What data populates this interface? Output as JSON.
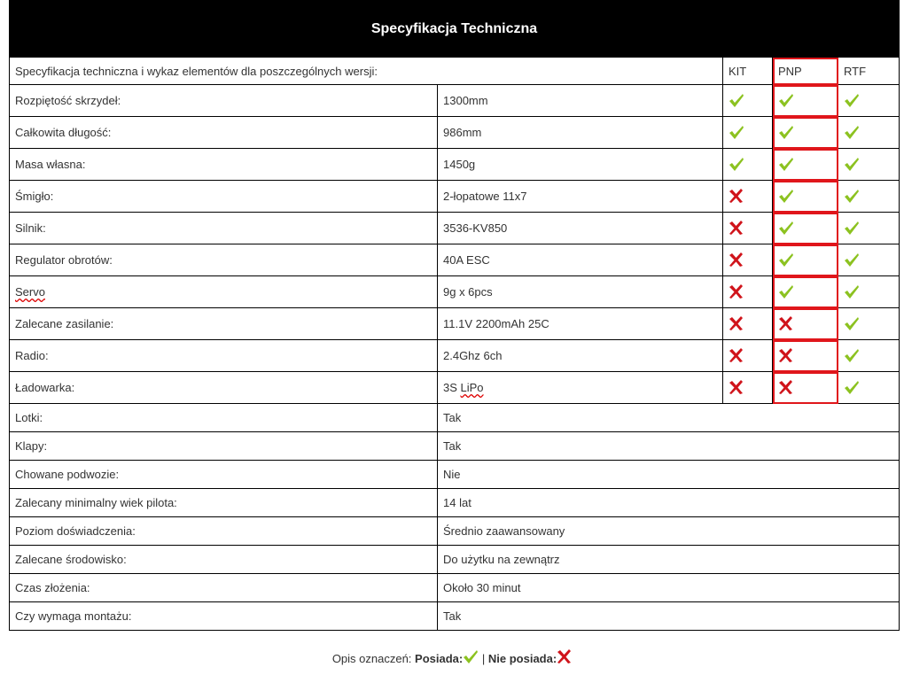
{
  "title": "Specyfikacja Techniczna",
  "intro": "Specyfikacja techniczna i wykaz elementów dla poszczególnych wersji:",
  "versions": [
    "KIT",
    "PNP",
    "RTF"
  ],
  "colors": {
    "check": "#8cc220",
    "cross": "#d0141b",
    "highlight": "#e0161b"
  },
  "icon_rows": [
    {
      "label": "Rozpiętość skrzydeł:",
      "value": "1300mm",
      "marks": [
        true,
        true,
        true
      ]
    },
    {
      "label": "Całkowita długość:",
      "value": "986mm",
      "marks": [
        true,
        true,
        true
      ]
    },
    {
      "label": "Masa własna:",
      "value": "1450g",
      "marks": [
        true,
        true,
        true
      ]
    },
    {
      "label": "Śmigło:",
      "value": "2-łopatowe 11x7",
      "marks": [
        false,
        true,
        true
      ]
    },
    {
      "label": "Silnik:",
      "value": "3536-KV850",
      "marks": [
        false,
        true,
        true
      ]
    },
    {
      "label": "Regulator obrotów:",
      "value": "40A ESC",
      "marks": [
        false,
        true,
        true
      ]
    },
    {
      "label": "Servo",
      "value": "9g x 6pcs",
      "marks": [
        false,
        true,
        true
      ]
    },
    {
      "label": "Zalecane zasilanie:",
      "value": "11.1V 2200mAh 25C",
      "marks": [
        false,
        false,
        true
      ]
    },
    {
      "label": "Radio:",
      "value": "2.4Ghz 6ch",
      "marks": [
        false,
        false,
        true
      ]
    },
    {
      "label": "Ładowarka:",
      "value": "3S LiPo",
      "marks": [
        false,
        false,
        true
      ]
    }
  ],
  "plain_rows": [
    {
      "label": "Lotki:",
      "value": "Tak"
    },
    {
      "label": "Klapy:",
      "value": "Tak"
    },
    {
      "label": "Chowane podwozie:",
      "value": "Nie"
    },
    {
      "label": "Zalecany minimalny wiek pilota:",
      "value": "14 lat"
    },
    {
      "label": "Poziom doświadczenia:",
      "value": "Średnio zaawansowany"
    },
    {
      "label": "Zalecane środowisko:",
      "value": "Do użytku na zewnątrz"
    },
    {
      "label": "Czas złożenia:",
      "value": "Około 30 minut"
    },
    {
      "label": "Czy wymaga montażu:",
      "value": "Tak"
    }
  ],
  "legend": {
    "prefix": "Opis oznaczeń:",
    "has": "Posiada:",
    "separator": "|",
    "has_not": "Nie posiada:"
  }
}
